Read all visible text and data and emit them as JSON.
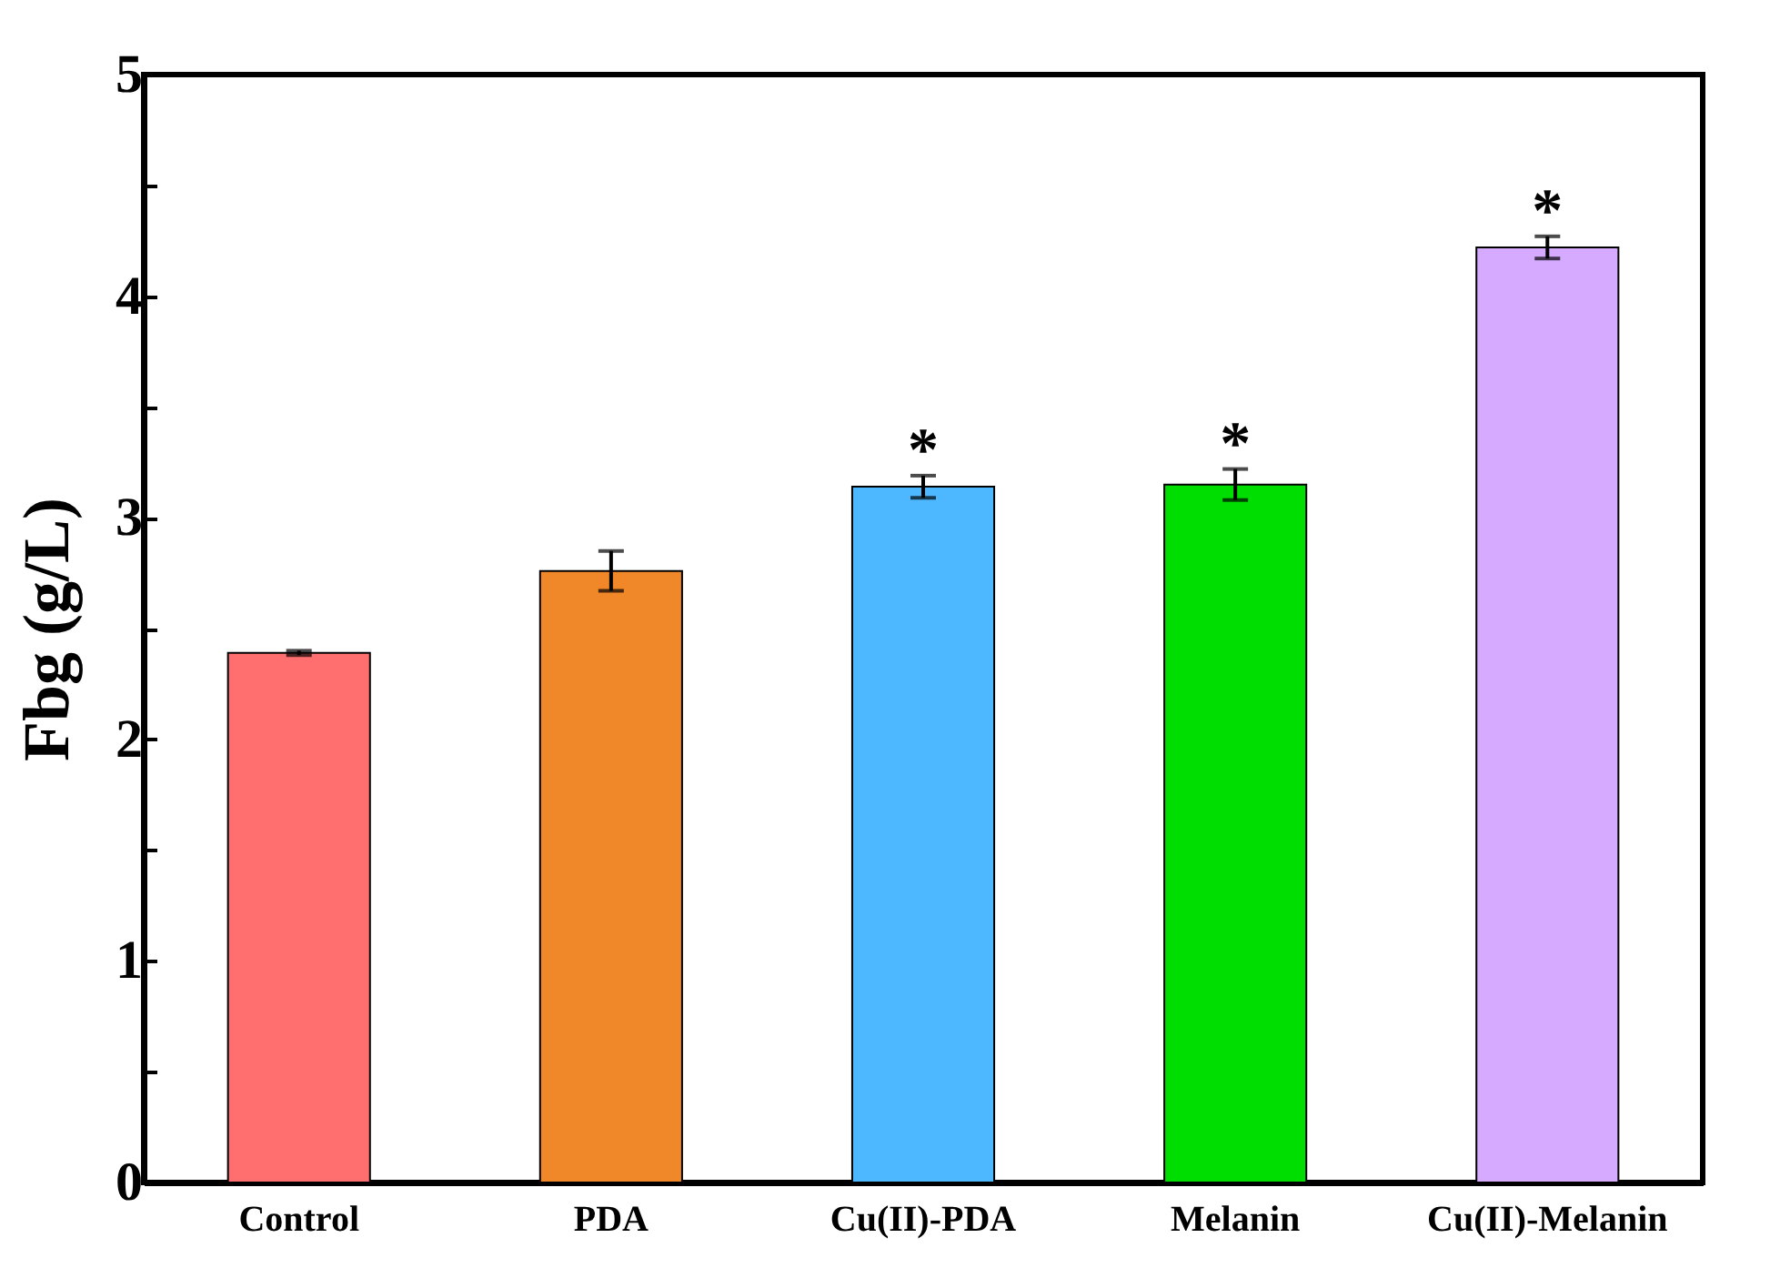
{
  "chart_data": {
    "type": "bar",
    "ylabel": "Fbg (g/L)",
    "categories": [
      "Control",
      "PDA",
      "Cu(II)-PDA",
      "Melanin",
      "Cu(II)-Melanin"
    ],
    "values": [
      2.39,
      2.76,
      3.14,
      3.15,
      4.22
    ],
    "errors": [
      0.01,
      0.09,
      0.05,
      0.07,
      0.05
    ],
    "colors": [
      "#ff6f6f",
      "#f0882a",
      "#4db8ff",
      "#00dd00",
      "#d5aaff"
    ],
    "ylim": [
      0,
      5
    ],
    "yticks": [
      0,
      {
        "value": 0.5,
        "label": null
      },
      1,
      {
        "value": 1.5,
        "label": null
      },
      2,
      {
        "value": 2.5,
        "label": null
      },
      3,
      {
        "value": 3.5,
        "label": null
      },
      4,
      {
        "value": 4.5,
        "label": null
      },
      5
    ],
    "annotations": [
      "*",
      "*",
      "*"
    ],
    "grid": false
  }
}
